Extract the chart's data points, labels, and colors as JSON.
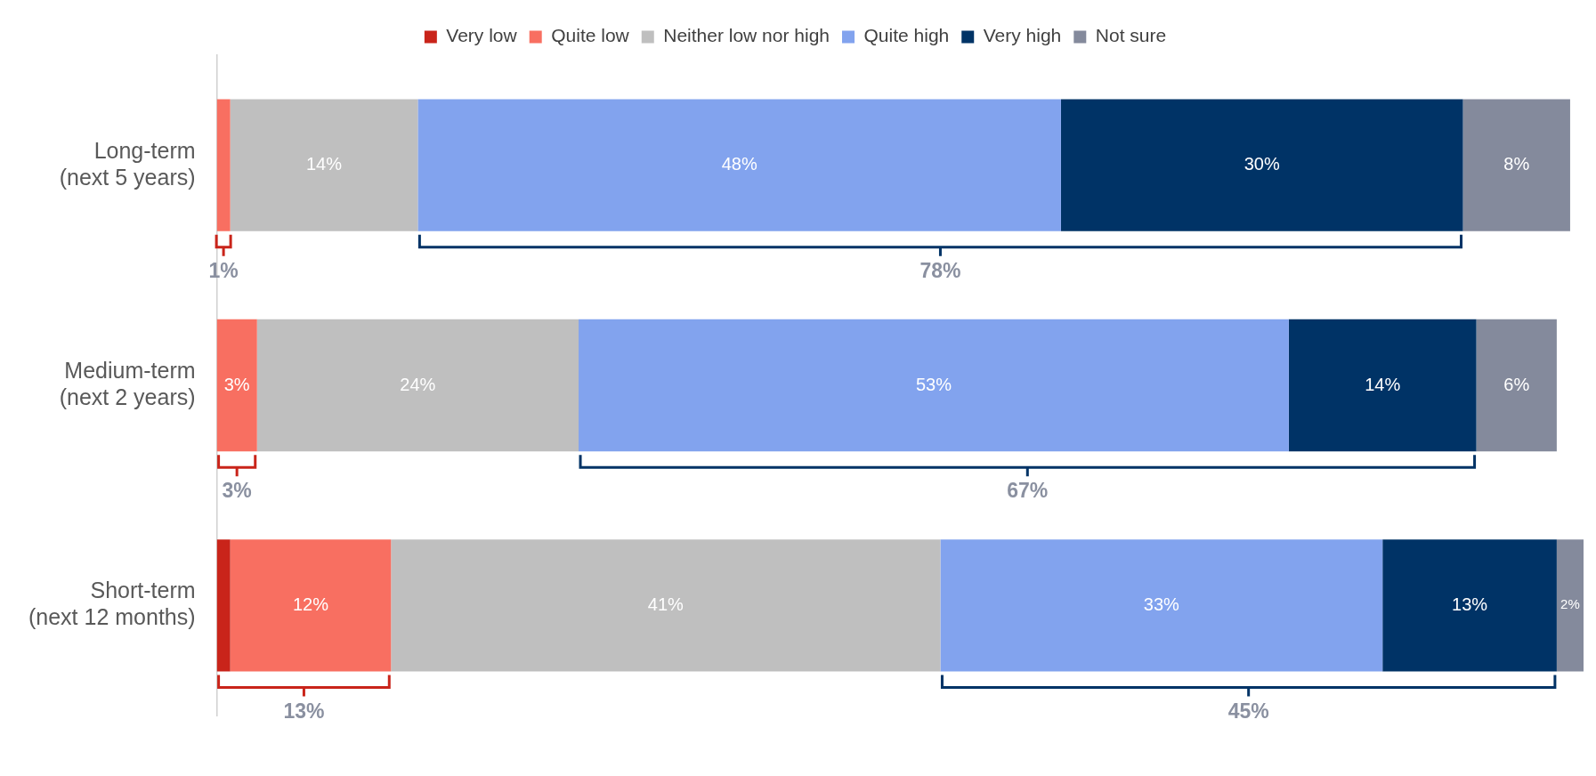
{
  "chart_data": {
    "type": "bar",
    "orientation": "horizontal",
    "stacked": true,
    "legend": "top",
    "categories": [
      "Long-term (next 5 years)",
      "Medium-term (next 2 years)",
      "Short-term (next 12 months)"
    ],
    "series": [
      {
        "name": "Very low",
        "color": "#c9241a",
        "values": [
          0,
          0,
          1
        ],
        "value_labels": [
          null,
          null,
          null
        ]
      },
      {
        "name": "Quite low",
        "color": "#f86f61",
        "values": [
          1,
          3,
          12
        ],
        "value_labels": [
          null,
          "3%",
          "12%"
        ]
      },
      {
        "name": "Neither low nor high",
        "color": "#bfbfbf",
        "values": [
          14,
          24,
          41
        ],
        "value_labels": [
          "14%",
          "24%",
          "41%"
        ]
      },
      {
        "name": "Quite high",
        "color": "#82a3ee",
        "values": [
          48,
          53,
          33
        ],
        "value_labels": [
          "48%",
          "53%",
          "33%"
        ]
      },
      {
        "name": "Very high",
        "color": "#003366",
        "values": [
          30,
          14,
          13
        ],
        "value_labels": [
          "30%",
          "14%",
          "13%"
        ]
      },
      {
        "name": "Not sure",
        "color": "#848a9c",
        "values": [
          8,
          6,
          2
        ],
        "value_labels": [
          "8%",
          "6%",
          "2%"
        ]
      }
    ],
    "annotations": [
      "1%",
      "78%",
      "3%",
      "67%",
      "13%",
      "45%"
    ]
  }
}
